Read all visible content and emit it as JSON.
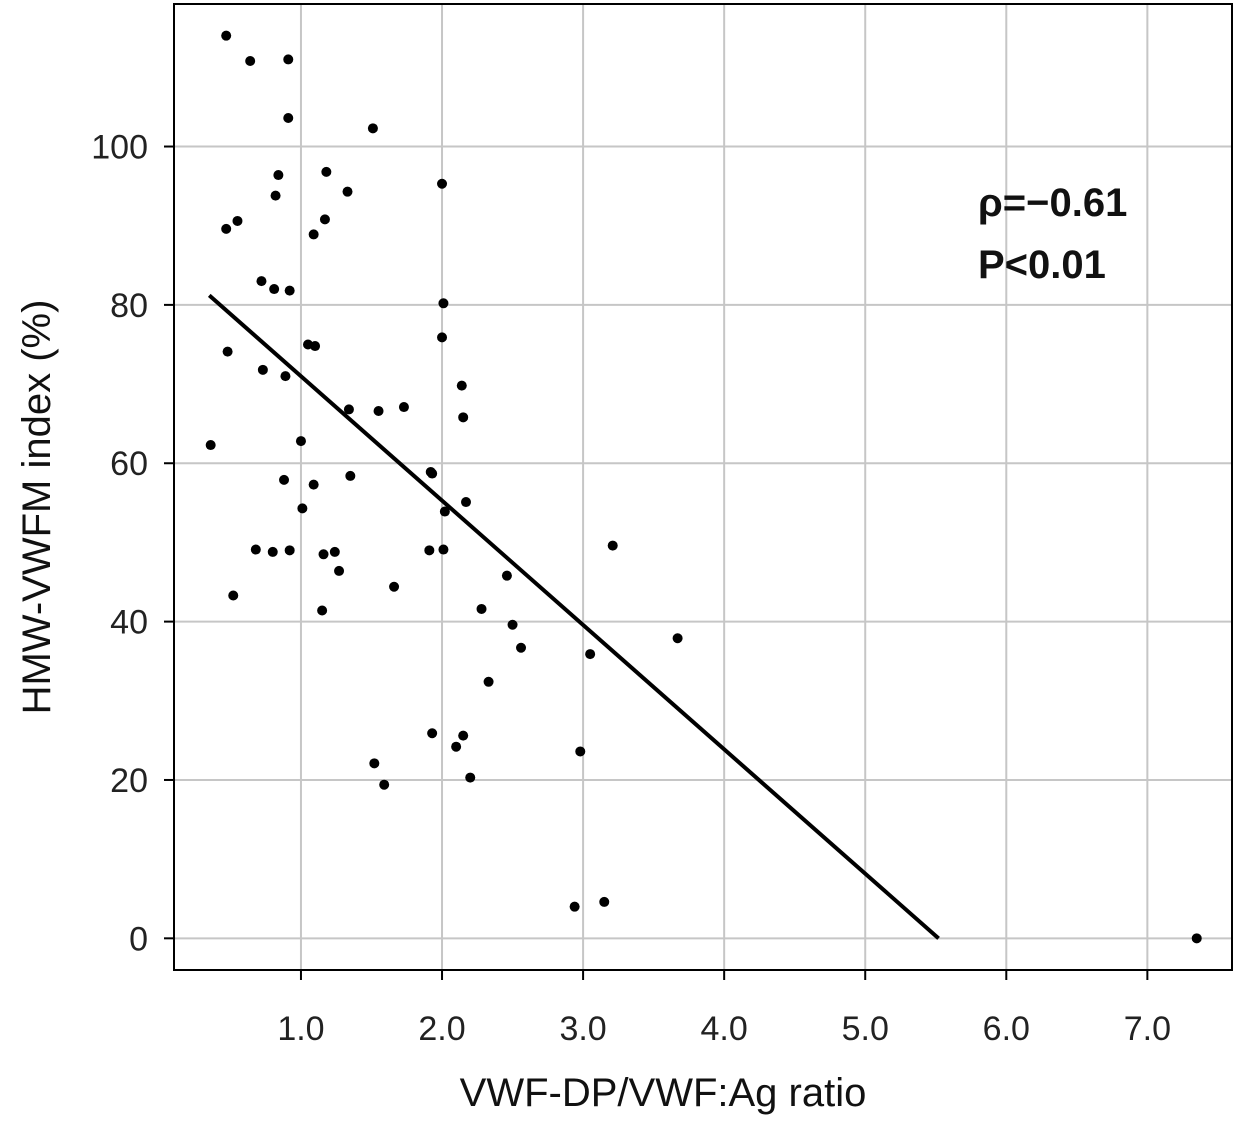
{
  "chart_data": {
    "type": "scatter",
    "xlabel": "VWF-DP/VWF:Ag ratio",
    "ylabel": "HMW-VWFM index (%)",
    "xlim": [
      0.1,
      7.6
    ],
    "ylim": [
      -4,
      118
    ],
    "x_ticks": [
      1.0,
      2.0,
      3.0,
      4.0,
      5.0,
      6.0,
      7.0
    ],
    "x_tick_labels": [
      "1.0",
      "2.0",
      "3.0",
      "4.0",
      "5.0",
      "6.0",
      "7.0"
    ],
    "y_ticks": [
      0,
      20,
      40,
      60,
      80,
      100
    ],
    "y_tick_labels": [
      "0",
      "20",
      "40",
      "60",
      "80",
      "100"
    ],
    "x_grid": [
      1.0,
      2.0,
      3.0,
      4.0,
      5.0,
      6.0,
      7.0
    ],
    "y_grid": [
      0,
      20,
      40,
      60,
      80,
      100
    ],
    "grid": true,
    "annotations": [
      "ρ=−0.61",
      "P<0.01"
    ],
    "trend_line": {
      "x": [
        0.35,
        5.52
      ],
      "y": [
        81.2,
        0
      ]
    },
    "points": [
      [
        0.47,
        114.0
      ],
      [
        0.64,
        110.8
      ],
      [
        0.91,
        111.0
      ],
      [
        0.91,
        103.6
      ],
      [
        1.51,
        102.3
      ],
      [
        2.0,
        95.3
      ],
      [
        0.84,
        96.4
      ],
      [
        1.18,
        96.8
      ],
      [
        0.82,
        93.8
      ],
      [
        1.33,
        94.3
      ],
      [
        0.47,
        89.6
      ],
      [
        0.55,
        90.6
      ],
      [
        1.17,
        90.8
      ],
      [
        1.09,
        88.9
      ],
      [
        0.72,
        83.0
      ],
      [
        0.81,
        82.0
      ],
      [
        0.92,
        81.8
      ],
      [
        2.01,
        80.2
      ],
      [
        2.0,
        75.9
      ],
      [
        1.05,
        75.0
      ],
      [
        1.1,
        74.8
      ],
      [
        0.48,
        74.1
      ],
      [
        0.73,
        71.8
      ],
      [
        0.89,
        71.0
      ],
      [
        2.14,
        69.8
      ],
      [
        2.15,
        65.8
      ],
      [
        1.34,
        66.8
      ],
      [
        1.55,
        66.6
      ],
      [
        1.73,
        67.1
      ],
      [
        1.0,
        62.8
      ],
      [
        0.36,
        62.3
      ],
      [
        1.92,
        58.9
      ],
      [
        1.93,
        58.7
      ],
      [
        1.35,
        58.4
      ],
      [
        0.88,
        57.9
      ],
      [
        1.09,
        57.3
      ],
      [
        2.17,
        55.1
      ],
      [
        1.01,
        54.3
      ],
      [
        2.02,
        53.9
      ],
      [
        0.68,
        49.1
      ],
      [
        0.92,
        49.0
      ],
      [
        0.8,
        48.8
      ],
      [
        1.16,
        48.5
      ],
      [
        1.24,
        48.8
      ],
      [
        1.91,
        49.0
      ],
      [
        2.01,
        49.1
      ],
      [
        3.21,
        49.6
      ],
      [
        1.27,
        46.4
      ],
      [
        2.46,
        45.8
      ],
      [
        1.66,
        44.4
      ],
      [
        0.52,
        43.3
      ],
      [
        1.15,
        41.4
      ],
      [
        2.28,
        41.6
      ],
      [
        2.5,
        39.6
      ],
      [
        2.56,
        36.7
      ],
      [
        3.05,
        35.9
      ],
      [
        3.67,
        37.9
      ],
      [
        2.33,
        32.4
      ],
      [
        1.93,
        25.9
      ],
      [
        2.15,
        25.6
      ],
      [
        2.1,
        24.2
      ],
      [
        2.98,
        23.6
      ],
      [
        1.52,
        22.1
      ],
      [
        2.2,
        20.3
      ],
      [
        1.59,
        19.4
      ],
      [
        2.94,
        4.0
      ],
      [
        3.15,
        4.6
      ],
      [
        7.35,
        0.0
      ]
    ]
  }
}
